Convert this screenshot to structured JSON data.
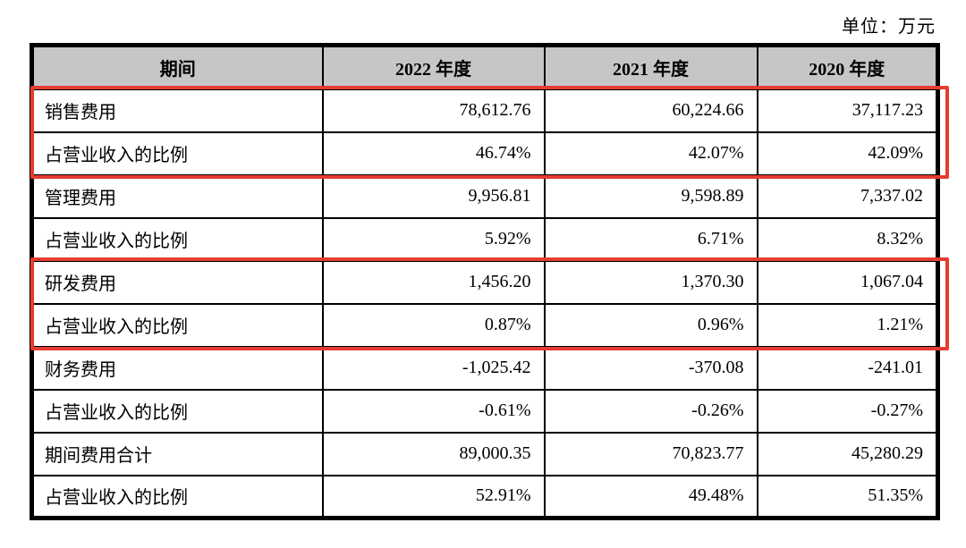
{
  "page": {
    "unit_label": "单位：万元"
  },
  "table": {
    "header_bg": "#c6c6c6",
    "highlight_color": "#e53c30",
    "columns": [
      "期间",
      "2022 年度",
      "2021 年度",
      "2020 年度"
    ],
    "rows": [
      {
        "label": "销售费用",
        "values": [
          "78,612.76",
          "60,224.66",
          "37,117.23"
        ]
      },
      {
        "label": "占营业收入的比例",
        "values": [
          "46.74%",
          "42.07%",
          "42.09%"
        ]
      },
      {
        "label": "管理费用",
        "values": [
          "9,956.81",
          "9,598.89",
          "7,337.02"
        ]
      },
      {
        "label": "占营业收入的比例",
        "values": [
          "5.92%",
          "6.71%",
          "8.32%"
        ]
      },
      {
        "label": "研发费用",
        "values": [
          "1,456.20",
          "1,370.30",
          "1,067.04"
        ]
      },
      {
        "label": "占营业收入的比例",
        "values": [
          "0.87%",
          "0.96%",
          "1.21%"
        ]
      },
      {
        "label": "财务费用",
        "values": [
          "-1,025.42",
          "-370.08",
          "-241.01"
        ]
      },
      {
        "label": "占营业收入的比例",
        "values": [
          "-0.61%",
          "-0.26%",
          "-0.27%"
        ]
      },
      {
        "label": "期间费用合计",
        "values": [
          "89,000.35",
          "70,823.77",
          "45,280.29"
        ]
      },
      {
        "label": "占营业收入的比例",
        "values": [
          "52.91%",
          "49.48%",
          "51.35%"
        ]
      }
    ]
  }
}
